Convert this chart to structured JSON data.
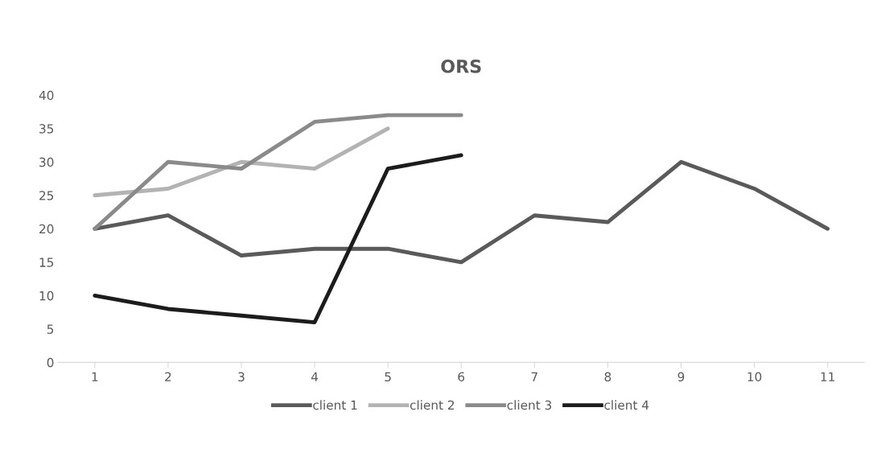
{
  "chart_data": {
    "type": "line",
    "title": "ORS",
    "categories": [
      "1",
      "2",
      "3",
      "4",
      "5",
      "6",
      "7",
      "8",
      "9",
      "10",
      "11"
    ],
    "series": [
      {
        "name": "client 1",
        "color": "#5a5a5a",
        "values": [
          20,
          22,
          16,
          17,
          17,
          15,
          22,
          21,
          30,
          26,
          20
        ]
      },
      {
        "name": "client 2",
        "color": "#b3b3b3",
        "values": [
          25,
          26,
          30,
          29,
          35,
          null,
          null,
          null,
          null,
          null,
          null
        ]
      },
      {
        "name": "client 3",
        "color": "#8a8a8a",
        "values": [
          20,
          30,
          29,
          36,
          37,
          37,
          null,
          null,
          null,
          null,
          null
        ]
      },
      {
        "name": "client 4",
        "color": "#1c1c1c",
        "values": [
          10,
          8,
          7,
          6,
          29,
          31,
          null,
          null,
          null,
          null,
          null
        ]
      }
    ],
    "ylim": [
      0,
      40
    ],
    "yticks": [
      0,
      5,
      10,
      15,
      20,
      25,
      30,
      35,
      40
    ],
    "grid": false,
    "legend": "bottom",
    "marker": "none",
    "line_style": "solid"
  }
}
